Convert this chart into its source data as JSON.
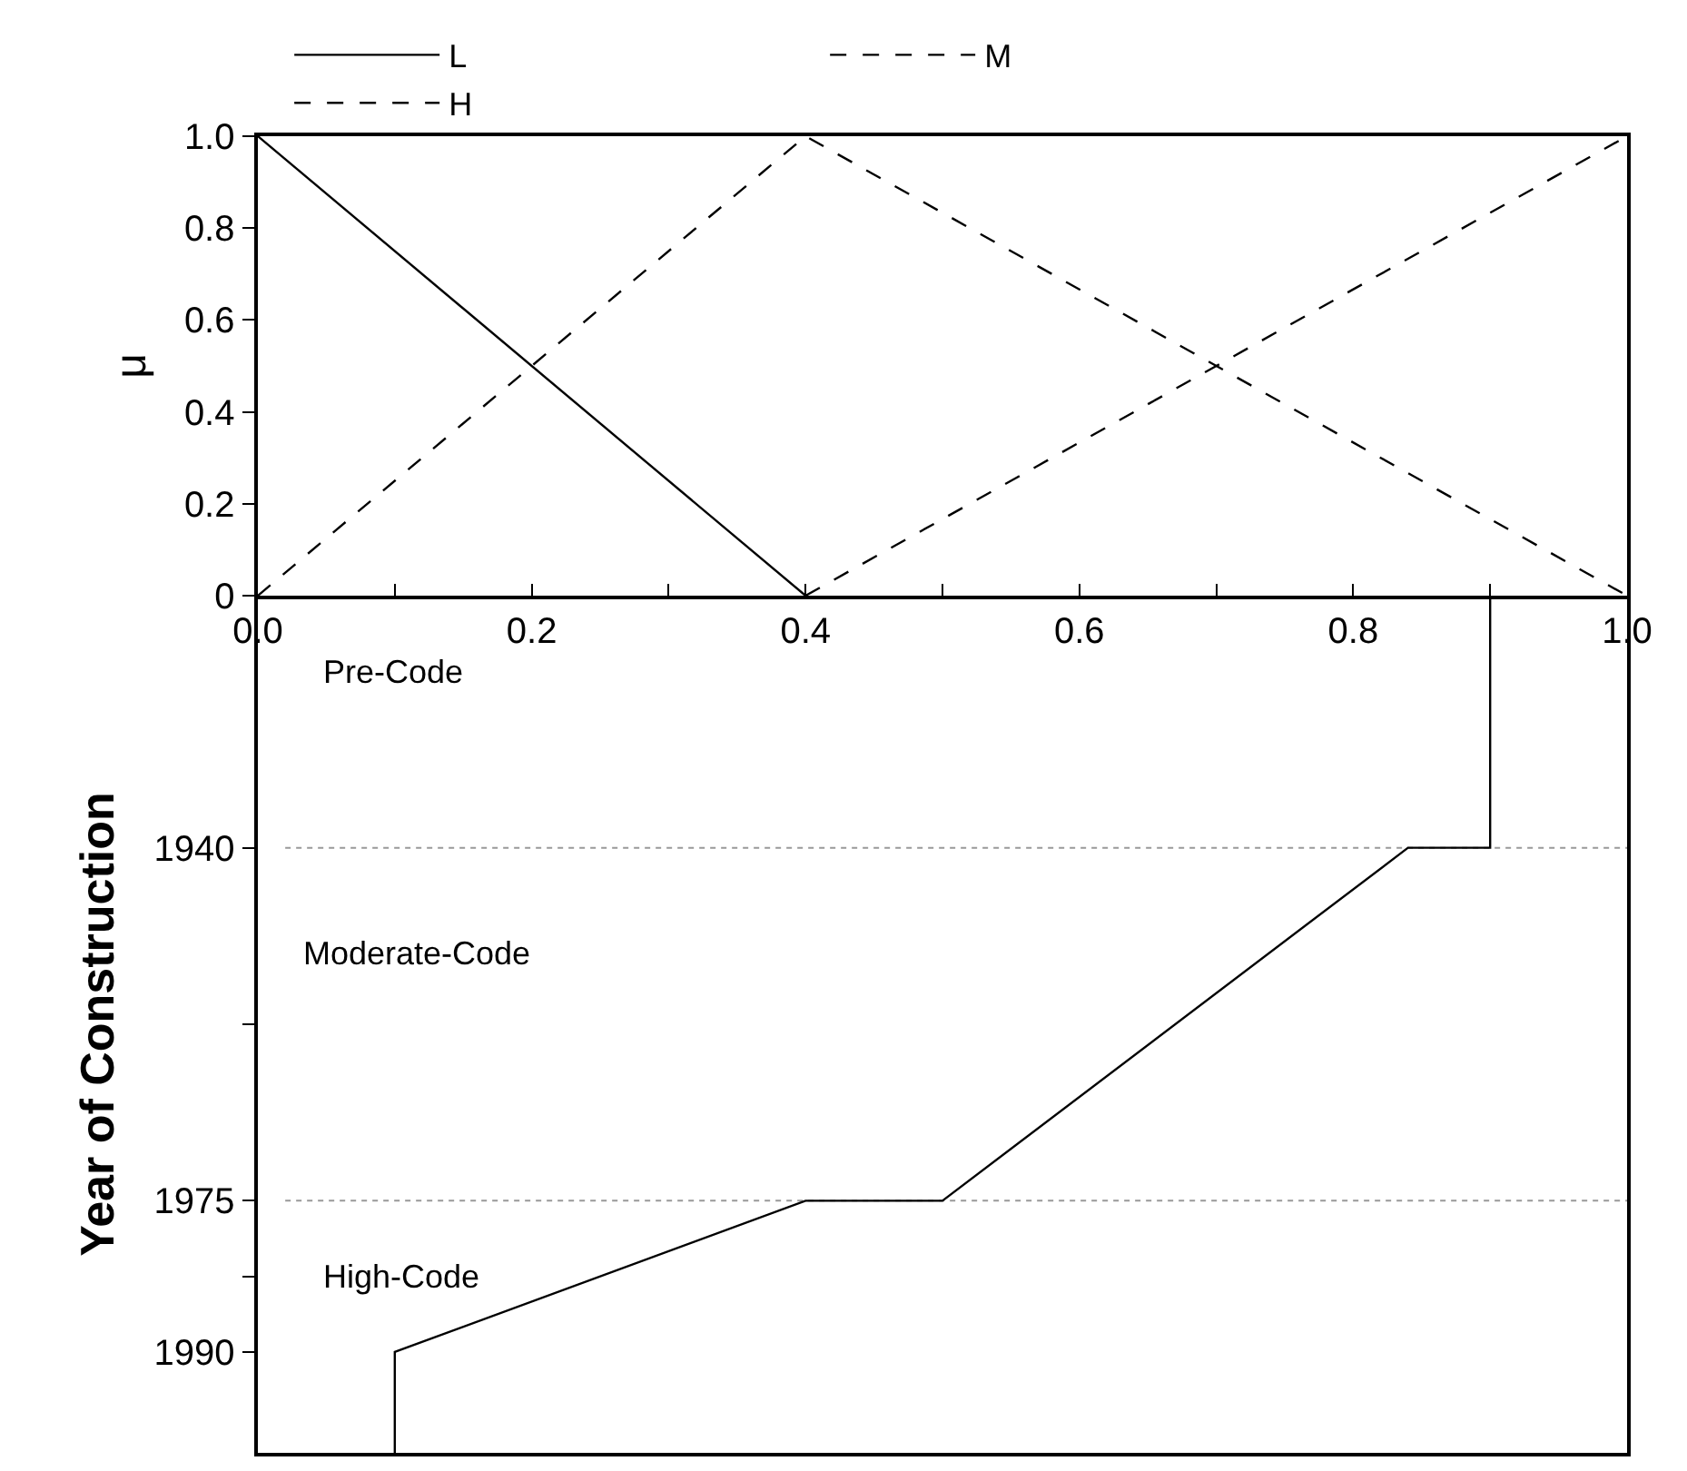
{
  "chart_data": [
    {
      "type": "line",
      "ylabel": "μ",
      "legend": "top",
      "xlim": [
        0,
        1
      ],
      "ylim": [
        0,
        1
      ],
      "xticks": [
        {
          "value": 0,
          "label": "0.0"
        },
        {
          "value": 0.1,
          "label": null
        },
        0.2,
        {
          "value": 0.3,
          "label": null
        },
        0.4,
        {
          "value": 0.5,
          "label": null
        },
        0.6,
        {
          "value": 0.7,
          "label": null
        },
        0.8,
        {
          "value": 0.9,
          "label": null
        },
        {
          "value": 1,
          "label": "1.0"
        }
      ],
      "yticks": [
        0,
        0.2,
        0.4,
        0.6,
        0.8,
        {
          "value": 1,
          "label": "1.0"
        }
      ],
      "series": [
        {
          "name": "L",
          "color": "#000000",
          "line_style": "solid",
          "x": [
            0,
            0.4
          ],
          "values": [
            1,
            0
          ]
        },
        {
          "name": "M",
          "color": "#000000",
          "line_style": "dashed",
          "x": [
            0,
            0.4,
            1
          ],
          "values": [
            0,
            1,
            0
          ]
        },
        {
          "name": "H",
          "color": "#000000",
          "line_style": "dashed",
          "x": [
            0.4,
            1
          ],
          "values": [
            0,
            1
          ]
        }
      ]
    },
    {
      "type": "line",
      "ylabel": "Year of Construction",
      "tick_labels": "y",
      "line_style": "solid",
      "xlim": [
        0,
        1
      ],
      "ylim": [
        2000,
        1915
      ],
      "yticks": [
        1940,
        {
          "value": 1957.5,
          "label": null
        },
        1975,
        {
          "value": 1982.5,
          "label": null
        },
        1990
      ],
      "series": [
        {
          "color": "#000000",
          "x": [
            0.9,
            0.9,
            0.84,
            0.5,
            0.4,
            0.1,
            0.1
          ],
          "values": [
            1915,
            1940,
            1940,
            1975,
            1975,
            1990,
            2000
          ]
        }
      ],
      "ref_lines": [
        {
          "axis": "y",
          "value": 1940,
          "label": null,
          "color": "#999999",
          "line_style": "dotted"
        },
        {
          "axis": "y",
          "value": 1975,
          "label": null,
          "color": "#999999",
          "line_style": "dotted"
        }
      ],
      "annotations": [
        "Pre-Code",
        "Moderate-Code",
        "High-Code"
      ]
    }
  ]
}
